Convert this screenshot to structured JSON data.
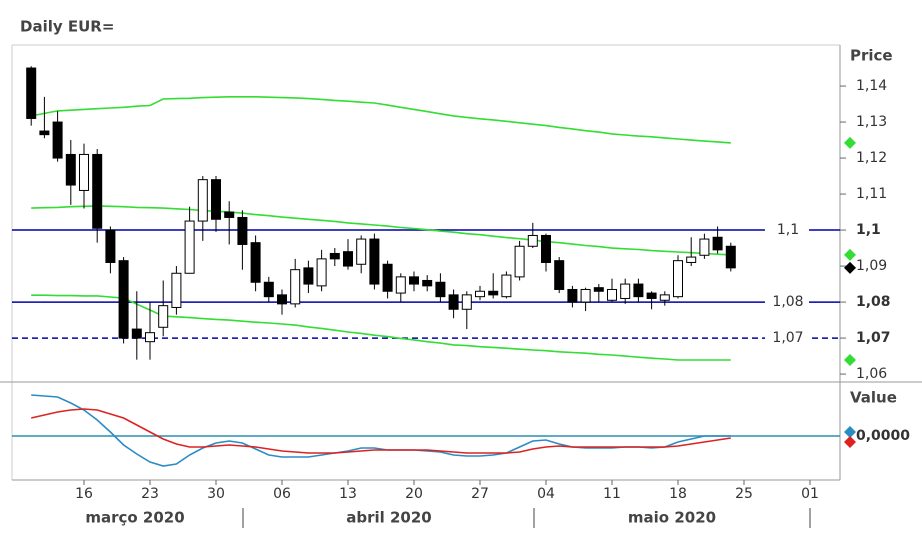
{
  "chart_data": {
    "type": "candlestick",
    "title": "Daily EUR=",
    "y_axis_title": "Price",
    "y2_axis_title": "Value",
    "categories": [
      null,
      null,
      null,
      null,
      "16",
      null,
      null,
      null,
      null,
      "23",
      null,
      null,
      null,
      null,
      "30",
      null,
      null,
      null,
      null,
      "06",
      null,
      null,
      null,
      null,
      "13",
      null,
      null,
      null,
      null,
      "20",
      null,
      null,
      null,
      null,
      "27",
      null,
      null,
      null,
      null,
      "04",
      null,
      null,
      null,
      null,
      "11",
      null,
      null,
      null,
      null,
      "18",
      null,
      null,
      null,
      null,
      "25",
      null,
      null,
      null,
      null,
      "01",
      null,
      null
    ],
    "month_labels": [
      "março 2020",
      "abril 2020",
      "maio 2020"
    ],
    "open": [
      1.145,
      1.1275,
      1.13,
      1.121,
      1.111,
      1.121,
      1.1,
      1.0915,
      1.0725,
      1.069,
      1.073,
      1.0785,
      1.088,
      1.1025,
      1.114,
      1.105,
      1.1035,
      1.0965,
      1.0855,
      1.082,
      1.0795,
      1.0895,
      1.0845,
      1.0935,
      1.094,
      1.0905,
      1.0975,
      1.0905,
      1.0825,
      1.087,
      1.086,
      1.0855,
      1.082,
      1.078,
      1.0815,
      1.083,
      1.0815,
      1.087,
      1.0955,
      1.0985,
      1.0915,
      1.0835,
      1.08,
      1.084,
      1.0805,
      1.081,
      1.085,
      1.0825,
      1.0805,
      1.0815,
      1.091,
      1.093,
      1.098,
      1.0955,
      null,
      null,
      null,
      null,
      null,
      null,
      null,
      null
    ],
    "high": [
      1.1455,
      1.137,
      1.133,
      1.125,
      1.124,
      1.1225,
      1.101,
      1.0925,
      1.083,
      1.08,
      1.086,
      1.09,
      1.1065,
      1.115,
      1.115,
      1.108,
      1.1055,
      1.0985,
      1.087,
      1.0835,
      1.092,
      1.0915,
      1.0945,
      1.095,
      1.0975,
      1.0985,
      1.099,
      1.0915,
      1.088,
      1.0885,
      1.0875,
      1.088,
      1.0835,
      1.083,
      1.0845,
      1.088,
      1.0885,
      1.097,
      1.102,
      1.099,
      1.0925,
      1.0845,
      1.084,
      1.085,
      1.0865,
      1.0865,
      1.0865,
      1.083,
      1.083,
      1.093,
      1.098,
      1.099,
      1.101,
      1.0965,
      null,
      null,
      null,
      null,
      null,
      null,
      null,
      null
    ],
    "low": [
      1.129,
      1.1255,
      1.119,
      1.107,
      1.106,
      1.0965,
      1.088,
      1.0685,
      1.064,
      1.064,
      1.0705,
      1.0765,
      1.088,
      1.097,
      1.0995,
      1.096,
      1.089,
      1.083,
      1.08,
      1.0765,
      1.0785,
      1.0825,
      1.083,
      1.09,
      1.089,
      1.088,
      1.0835,
      1.081,
      1.08,
      1.083,
      1.083,
      1.08,
      1.0755,
      1.0725,
      1.0805,
      1.081,
      1.081,
      1.086,
      1.095,
      1.0885,
      1.0825,
      1.0785,
      1.0775,
      1.08,
      1.08,
      1.0795,
      1.08,
      1.078,
      1.079,
      1.081,
      1.09,
      1.092,
      1.0935,
      1.0885,
      null,
      null,
      null,
      null,
      null,
      null,
      null,
      null
    ],
    "close": [
      1.131,
      1.1265,
      1.12,
      1.1125,
      1.121,
      1.1005,
      1.091,
      1.07,
      1.07,
      1.0715,
      1.079,
      1.088,
      1.1025,
      1.114,
      1.103,
      1.1035,
      1.096,
      1.0855,
      1.0815,
      1.0795,
      1.089,
      1.085,
      1.092,
      1.092,
      1.09,
      1.0975,
      1.085,
      1.083,
      1.087,
      1.085,
      1.0845,
      1.0815,
      1.078,
      1.082,
      1.083,
      1.082,
      1.0875,
      1.0955,
      1.0985,
      1.091,
      1.0835,
      1.08,
      1.0835,
      1.083,
      1.0835,
      1.085,
      1.0815,
      1.081,
      1.082,
      1.0915,
      1.0925,
      1.0975,
      1.0945,
      1.0895,
      null,
      null,
      null,
      null,
      null,
      null,
      null,
      null
    ],
    "up_color": "#ffffff",
    "down_color": "#000000",
    "ylim": [
      1.0578,
      1.1514
    ],
    "yticks": [
      {
        "value": 1.06,
        "label": "1,06"
      },
      {
        "value": 1.07,
        "label": "1,07"
      },
      {
        "value": 1.08,
        "label": "1,08"
      },
      {
        "value": 1.09,
        "label": "1,09"
      },
      {
        "value": 1.1,
        "label": "1,1"
      },
      {
        "value": 1.11,
        "label": "1,11"
      },
      {
        "value": 1.12,
        "label": "1,12"
      },
      {
        "value": 1.13,
        "label": "1,13"
      },
      {
        "value": 1.14,
        "label": "1,14"
      }
    ],
    "levels": [
      {
        "value": 1.1,
        "label": "1,1",
        "dashed": false
      },
      {
        "value": 1.08,
        "label": "1,08",
        "dashed": false
      },
      {
        "value": 1.07,
        "label": "1,07",
        "dashed": true
      }
    ],
    "level_color": "#0000a8",
    "y2lim": [
      -0.044,
      0.053
    ],
    "y2ticks": [
      {
        "value": 0,
        "label": "0,0000"
      }
    ],
    "series": [
      {
        "color": "#33dd33",
        "values": [
          1.1317,
          1.1324,
          1.1331,
          1.1333,
          1.1335,
          1.1337,
          1.1339,
          1.1341,
          1.1344,
          1.1346,
          1.1364,
          1.1365,
          1.1366,
          1.1368,
          1.1369,
          1.137,
          1.137,
          1.137,
          1.1369,
          1.1368,
          1.1367,
          1.1365,
          1.1363,
          1.136,
          1.1358,
          1.1355,
          1.1353,
          1.1347,
          1.1341,
          1.1335,
          1.1329,
          1.1323,
          1.1317,
          1.1313,
          1.1309,
          1.1306,
          1.1302,
          1.1298,
          1.1294,
          1.129,
          1.1285,
          1.1281,
          1.1276,
          1.1272,
          1.1267,
          1.1264,
          1.1261,
          1.1259,
          1.1256,
          1.1253,
          1.125,
          1.1247,
          1.1245,
          1.1242,
          null,
          null,
          null,
          null,
          null,
          null,
          null,
          null
        ]
      },
      {
        "color": "#33dd33",
        "values": [
          1.1061,
          1.1062,
          1.1063,
          1.1065,
          1.1066,
          1.1067,
          1.1066,
          1.1065,
          1.1063,
          1.1062,
          1.1061,
          1.1059,
          1.1057,
          1.1054,
          1.1052,
          1.105,
          1.1047,
          1.1043,
          1.104,
          1.1036,
          1.1033,
          1.103,
          1.1027,
          1.1024,
          1.102,
          1.1017,
          1.1014,
          1.1011,
          1.1007,
          1.1004,
          1.1001,
          1.0997,
          1.0994,
          1.099,
          1.0987,
          1.0983,
          1.0979,
          1.0976,
          1.0972,
          1.0968,
          1.0965,
          1.0961,
          1.0957,
          1.0954,
          1.095,
          1.0948,
          1.0946,
          1.0943,
          1.0941,
          1.0939,
          1.0937,
          1.0935,
          1.0933,
          1.0931,
          null,
          null,
          null,
          null,
          null,
          null,
          null,
          null
        ]
      },
      {
        "color": "#33dd33",
        "values": [
          1.0819,
          1.0819,
          1.0818,
          1.0818,
          1.0817,
          1.0817,
          1.0814,
          1.0811,
          1.0794,
          1.0778,
          1.0761,
          1.0759,
          1.0757,
          1.0754,
          1.0752,
          1.075,
          1.0747,
          1.0744,
          1.0742,
          1.0739,
          1.0736,
          1.0731,
          1.0727,
          1.0722,
          1.0717,
          1.0713,
          1.0708,
          1.0704,
          1.0699,
          1.0695,
          1.069,
          1.0686,
          1.0681,
          1.0679,
          1.0676,
          1.0674,
          1.0672,
          1.0669,
          1.0667,
          1.0665,
          1.0662,
          1.066,
          1.0658,
          1.0655,
          1.0653,
          1.065,
          1.0647,
          1.0644,
          1.0642,
          1.0639,
          1.0639,
          1.0639,
          1.0639,
          1.0639,
          null,
          null,
          null,
          null,
          null,
          null,
          null,
          null
        ]
      },
      {
        "color": "#2b8cc4",
        "axis": "y2",
        "values": [
          0.041,
          0.04,
          0.039,
          0.033,
          0.026,
          0.016,
          0.004,
          -0.009,
          -0.018,
          -0.026,
          -0.03,
          -0.028,
          -0.019,
          -0.012,
          -0.007,
          -0.005,
          -0.007,
          -0.013,
          -0.019,
          -0.021,
          -0.021,
          -0.021,
          -0.019,
          -0.017,
          -0.015,
          -0.012,
          -0.012,
          -0.014,
          -0.014,
          -0.014,
          -0.015,
          -0.016,
          -0.019,
          -0.02,
          -0.02,
          -0.019,
          -0.017,
          -0.011,
          -0.005,
          -0.004,
          -0.008,
          -0.011,
          -0.012,
          -0.012,
          -0.012,
          -0.011,
          -0.011,
          -0.012,
          -0.011,
          -0.006,
          -0.003,
          0,
          0,
          0,
          null,
          null,
          null,
          null,
          null,
          null,
          null,
          null
        ]
      },
      {
        "color": "#dd2222",
        "axis": "y2",
        "values": [
          0.018,
          0.021,
          0.024,
          0.026,
          0.027,
          0.026,
          0.022,
          0.018,
          0.011,
          0.004,
          -0.003,
          -0.008,
          -0.011,
          -0.011,
          -0.01,
          -0.009,
          -0.01,
          -0.011,
          -0.013,
          -0.015,
          -0.016,
          -0.017,
          -0.017,
          -0.017,
          -0.016,
          -0.015,
          -0.014,
          -0.014,
          -0.014,
          -0.014,
          -0.014,
          -0.015,
          -0.016,
          -0.017,
          -0.017,
          -0.017,
          -0.017,
          -0.016,
          -0.013,
          -0.011,
          -0.01,
          -0.011,
          -0.011,
          -0.011,
          -0.011,
          -0.011,
          -0.011,
          -0.011,
          -0.011,
          -0.01,
          -0.008,
          -0.006,
          -0.004,
          -0.002,
          null,
          null,
          null,
          null,
          null,
          null,
          null,
          null
        ]
      }
    ],
    "zero_line_color": "#2a8fb0"
  }
}
